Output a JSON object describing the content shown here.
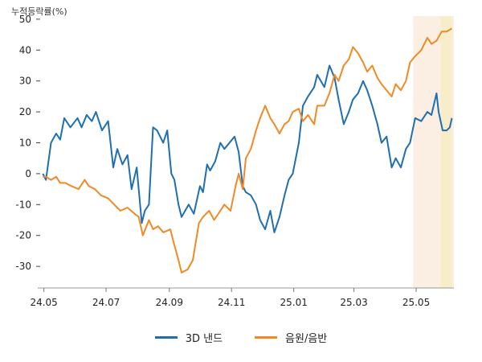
{
  "chart_data": {
    "type": "line",
    "ylabel": "누적등락률(%)",
    "ylim": [
      -37,
      51
    ],
    "yticks": [
      50,
      40,
      30,
      20,
      10,
      0,
      -10,
      -20,
      -30
    ],
    "xlim": [
      "2024-04-25",
      "2025-06-07"
    ],
    "xticks": [
      {
        "label": "24.05",
        "date": "2024-05-01"
      },
      {
        "label": "24.07",
        "date": "2024-07-01"
      },
      {
        "label": "24.09",
        "date": "2024-09-01"
      },
      {
        "label": "24.11",
        "date": "2024-11-01"
      },
      {
        "label": "25.01",
        "date": "2025-01-01"
      },
      {
        "label": "25.03",
        "date": "2025-03-01"
      },
      {
        "label": "25.05",
        "date": "2025-05-01"
      }
    ],
    "highlight_spans": [
      {
        "start": "2025-04-28",
        "end": "2025-06-07",
        "color": "#fbeee2"
      },
      {
        "start": "2025-05-25",
        "end": "2025-06-05",
        "color": "#f7edc8"
      }
    ],
    "legend_position": "bottom",
    "series": [
      {
        "name": "3D 낸드",
        "color": "#1f6fb0",
        "points": [
          [
            "2024-04-30",
            0
          ],
          [
            "2024-05-03",
            -2
          ],
          [
            "2024-05-08",
            10
          ],
          [
            "2024-05-13",
            13
          ],
          [
            "2024-05-17",
            11
          ],
          [
            "2024-05-21",
            18
          ],
          [
            "2024-05-27",
            15
          ],
          [
            "2024-06-03",
            18
          ],
          [
            "2024-06-07",
            15
          ],
          [
            "2024-06-12",
            19
          ],
          [
            "2024-06-17",
            17
          ],
          [
            "2024-06-21",
            20
          ],
          [
            "2024-06-27",
            14
          ],
          [
            "2024-07-03",
            17
          ],
          [
            "2024-07-08",
            2
          ],
          [
            "2024-07-12",
            8
          ],
          [
            "2024-07-17",
            3
          ],
          [
            "2024-07-22",
            6
          ],
          [
            "2024-07-26",
            -5
          ],
          [
            "2024-07-31",
            2
          ],
          [
            "2024-08-05",
            -16
          ],
          [
            "2024-08-08",
            -12
          ],
          [
            "2024-08-12",
            -10
          ],
          [
            "2024-08-16",
            15
          ],
          [
            "2024-08-20",
            14
          ],
          [
            "2024-08-26",
            10
          ],
          [
            "2024-08-30",
            14
          ],
          [
            "2024-09-03",
            0
          ],
          [
            "2024-09-06",
            -2
          ],
          [
            "2024-09-10",
            -10
          ],
          [
            "2024-09-13",
            -14
          ],
          [
            "2024-09-20",
            -10
          ],
          [
            "2024-09-25",
            -13
          ],
          [
            "2024-10-01",
            -4
          ],
          [
            "2024-10-04",
            -6
          ],
          [
            "2024-10-08",
            3
          ],
          [
            "2024-10-11",
            1
          ],
          [
            "2024-10-16",
            4
          ],
          [
            "2024-10-21",
            10
          ],
          [
            "2024-10-25",
            8
          ],
          [
            "2024-10-30",
            10
          ],
          [
            "2024-11-04",
            12
          ],
          [
            "2024-11-08",
            7
          ],
          [
            "2024-11-12",
            -4
          ],
          [
            "2024-11-15",
            -6
          ],
          [
            "2024-11-20",
            -7
          ],
          [
            "2024-11-25",
            -10
          ],
          [
            "2024-11-29",
            -15
          ],
          [
            "2024-12-04",
            -18
          ],
          [
            "2024-12-09",
            -12
          ],
          [
            "2024-12-13",
            -19
          ],
          [
            "2024-12-18",
            -14
          ],
          [
            "2024-12-23",
            -7
          ],
          [
            "2024-12-27",
            -2
          ],
          [
            "2024-12-31",
            0
          ],
          [
            "2025-01-06",
            10
          ],
          [
            "2025-01-10",
            22
          ],
          [
            "2025-01-15",
            25
          ],
          [
            "2025-01-21",
            28
          ],
          [
            "2025-01-24",
            32
          ],
          [
            "2025-01-31",
            28
          ],
          [
            "2025-02-05",
            35
          ],
          [
            "2025-02-10",
            31
          ],
          [
            "2025-02-14",
            24
          ],
          [
            "2025-02-19",
            16
          ],
          [
            "2025-02-24",
            20
          ],
          [
            "2025-02-28",
            24
          ],
          [
            "2025-03-05",
            26
          ],
          [
            "2025-03-10",
            30
          ],
          [
            "2025-03-14",
            27
          ],
          [
            "2025-03-19",
            22
          ],
          [
            "2025-03-24",
            16
          ],
          [
            "2025-03-28",
            10
          ],
          [
            "2025-04-02",
            12
          ],
          [
            "2025-04-07",
            2
          ],
          [
            "2025-04-11",
            5
          ],
          [
            "2025-04-16",
            2
          ],
          [
            "2025-04-21",
            8
          ],
          [
            "2025-04-25",
            10
          ],
          [
            "2025-04-30",
            18
          ],
          [
            "2025-05-06",
            17
          ],
          [
            "2025-05-12",
            20
          ],
          [
            "2025-05-16",
            19
          ],
          [
            "2025-05-21",
            26
          ],
          [
            "2025-05-23",
            20
          ],
          [
            "2025-05-27",
            14
          ],
          [
            "2025-05-31",
            14
          ],
          [
            "2025-06-03",
            15
          ],
          [
            "2025-06-05",
            18
          ]
        ]
      },
      {
        "name": "음원/음반",
        "color": "#f08a24",
        "points": [
          [
            "2024-04-30",
            -1
          ],
          [
            "2024-05-03",
            -1
          ],
          [
            "2024-05-08",
            -2
          ],
          [
            "2024-05-13",
            -1
          ],
          [
            "2024-05-17",
            -3
          ],
          [
            "2024-05-22",
            -3
          ],
          [
            "2024-05-28",
            -4
          ],
          [
            "2024-06-04",
            -5
          ],
          [
            "2024-06-10",
            -2
          ],
          [
            "2024-06-14",
            -4
          ],
          [
            "2024-06-20",
            -5
          ],
          [
            "2024-06-26",
            -7
          ],
          [
            "2024-07-03",
            -8
          ],
          [
            "2024-07-09",
            -10
          ],
          [
            "2024-07-15",
            -12
          ],
          [
            "2024-07-22",
            -11
          ],
          [
            "2024-07-29",
            -13
          ],
          [
            "2024-08-02",
            -14
          ],
          [
            "2024-08-06",
            -20
          ],
          [
            "2024-08-12",
            -15
          ],
          [
            "2024-08-16",
            -18
          ],
          [
            "2024-08-21",
            -17
          ],
          [
            "2024-08-26",
            -19
          ],
          [
            "2024-09-02",
            -18
          ],
          [
            "2024-09-05",
            -22
          ],
          [
            "2024-09-10",
            -28
          ],
          [
            "2024-09-13",
            -32
          ],
          [
            "2024-09-19",
            -31
          ],
          [
            "2024-09-24",
            -28
          ],
          [
            "2024-09-30",
            -16
          ],
          [
            "2024-10-04",
            -14
          ],
          [
            "2024-10-10",
            -12
          ],
          [
            "2024-10-15",
            -15
          ],
          [
            "2024-10-21",
            -12
          ],
          [
            "2024-10-25",
            -10
          ],
          [
            "2024-10-31",
            -12
          ],
          [
            "2024-11-05",
            -4
          ],
          [
            "2024-11-08",
            0
          ],
          [
            "2024-11-12",
            -5
          ],
          [
            "2024-11-15",
            5
          ],
          [
            "2024-11-20",
            8
          ],
          [
            "2024-11-25",
            14
          ],
          [
            "2024-11-29",
            18
          ],
          [
            "2024-12-04",
            22
          ],
          [
            "2024-12-09",
            18
          ],
          [
            "2024-12-13",
            16
          ],
          [
            "2024-12-18",
            13
          ],
          [
            "2024-12-23",
            16
          ],
          [
            "2024-12-27",
            17
          ],
          [
            "2024-12-31",
            20
          ],
          [
            "2025-01-06",
            21
          ],
          [
            "2025-01-10",
            17
          ],
          [
            "2025-01-15",
            19
          ],
          [
            "2025-01-21",
            16
          ],
          [
            "2025-01-24",
            22
          ],
          [
            "2025-01-31",
            22
          ],
          [
            "2025-02-05",
            26
          ],
          [
            "2025-02-10",
            32
          ],
          [
            "2025-02-14",
            30
          ],
          [
            "2025-02-19",
            35
          ],
          [
            "2025-02-24",
            37
          ],
          [
            "2025-02-28",
            41
          ],
          [
            "2025-03-05",
            39
          ],
          [
            "2025-03-10",
            36
          ],
          [
            "2025-03-14",
            33
          ],
          [
            "2025-03-19",
            35
          ],
          [
            "2025-03-24",
            31
          ],
          [
            "2025-03-28",
            29
          ],
          [
            "2025-04-02",
            27
          ],
          [
            "2025-04-07",
            25
          ],
          [
            "2025-04-11",
            29
          ],
          [
            "2025-04-16",
            27
          ],
          [
            "2025-04-21",
            30
          ],
          [
            "2025-04-25",
            36
          ],
          [
            "2025-04-30",
            38
          ],
          [
            "2025-05-06",
            40
          ],
          [
            "2025-05-12",
            44
          ],
          [
            "2025-05-16",
            42
          ],
          [
            "2025-05-21",
            43
          ],
          [
            "2025-05-26",
            46
          ],
          [
            "2025-05-31",
            46
          ],
          [
            "2025-06-05",
            47
          ]
        ]
      }
    ]
  }
}
